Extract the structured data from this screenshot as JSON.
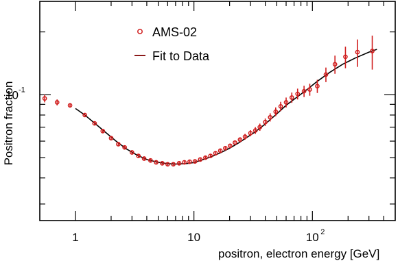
{
  "chart_data": {
    "type": "scatter",
    "title": "",
    "xlabel": "positron, electron energy [GeV]",
    "ylabel": "Positron fraction",
    "x_scale": "log",
    "y_scale": "log",
    "xlim": [
      0.5,
      500
    ],
    "ylim": [
      0.025,
      0.28
    ],
    "x_ticks": [
      {
        "value": 1,
        "base": "1",
        "exp": ""
      },
      {
        "value": 10,
        "base": "10",
        "exp": ""
      },
      {
        "value": 100,
        "base": "10",
        "exp": "2"
      }
    ],
    "y_ticks": [
      {
        "value": 0.1,
        "base": "10",
        "exp": "-1"
      }
    ],
    "legend": {
      "position": "top-left-inside"
    },
    "series": [
      {
        "name": "AMS-02",
        "kind": "points",
        "color": "#d01c1c",
        "x": [
          0.55,
          0.7,
          0.9,
          1.2,
          1.45,
          1.7,
          2.0,
          2.3,
          2.6,
          3.0,
          3.4,
          3.8,
          4.3,
          4.8,
          5.4,
          6.0,
          6.7,
          7.5,
          8.3,
          9.2,
          10.2,
          11.3,
          12.5,
          13.8,
          15.2,
          16.7,
          18.4,
          20.2,
          22.2,
          24.5,
          27,
          30,
          33,
          36,
          40,
          44,
          49,
          54,
          60,
          67,
          75,
          85,
          95,
          110,
          130,
          155,
          190,
          240,
          320
        ],
        "y": [
          0.096,
          0.092,
          0.089,
          0.08,
          0.073,
          0.067,
          0.062,
          0.058,
          0.056,
          0.053,
          0.051,
          0.0495,
          0.0485,
          0.0475,
          0.047,
          0.0465,
          0.0465,
          0.047,
          0.0475,
          0.0478,
          0.048,
          0.049,
          0.05,
          0.051,
          0.0525,
          0.054,
          0.0555,
          0.057,
          0.059,
          0.061,
          0.063,
          0.0655,
          0.0675,
          0.07,
          0.074,
          0.078,
          0.083,
          0.088,
          0.092,
          0.097,
          0.101,
          0.104,
          0.106,
          0.11,
          0.125,
          0.14,
          0.152,
          0.16,
          0.162
        ],
        "err": [
          0.004,
          0.003,
          0.002,
          0.0015,
          0.0012,
          0.001,
          0.001,
          0.001,
          0.0009,
          0.0008,
          0.0008,
          0.0007,
          0.0007,
          0.0007,
          0.0007,
          0.0006,
          0.0006,
          0.0007,
          0.0007,
          0.0007,
          0.0007,
          0.0008,
          0.0008,
          0.0009,
          0.0009,
          0.001,
          0.001,
          0.0012,
          0.0014,
          0.0016,
          0.002,
          0.0022,
          0.0025,
          0.0028,
          0.003,
          0.0035,
          0.004,
          0.0045,
          0.005,
          0.0055,
          0.006,
          0.0065,
          0.007,
          0.008,
          0.01,
          0.014,
          0.018,
          0.024,
          0.03
        ]
      },
      {
        "name": "Fit to Data",
        "kind": "line",
        "color": "#000000",
        "x": [
          1.0,
          1.2,
          1.5,
          1.8,
          2.2,
          2.7,
          3.3,
          4.0,
          5.0,
          6.0,
          7.0,
          8.5,
          10,
          12,
          14,
          17,
          20,
          24,
          28,
          33,
          40,
          50,
          60,
          75,
          90,
          110,
          140,
          180,
          230,
          300,
          350
        ],
        "y": [
          0.086,
          0.08,
          0.072,
          0.066,
          0.06,
          0.055,
          0.0515,
          0.049,
          0.0475,
          0.0468,
          0.0466,
          0.0468,
          0.0474,
          0.049,
          0.0505,
          0.053,
          0.0555,
          0.059,
          0.0625,
          0.0665,
          0.0725,
          0.081,
          0.089,
          0.098,
          0.106,
          0.116,
          0.128,
          0.14,
          0.15,
          0.16,
          0.165
        ]
      }
    ]
  },
  "axis_minor_x": [
    2,
    3,
    4,
    5,
    6,
    7,
    8,
    9,
    20,
    30,
    40,
    50,
    60,
    70,
    80,
    90,
    200,
    300,
    400
  ],
  "axis_minor_y": [
    0.03,
    0.04,
    0.05,
    0.06,
    0.07,
    0.08,
    0.09,
    0.2
  ]
}
